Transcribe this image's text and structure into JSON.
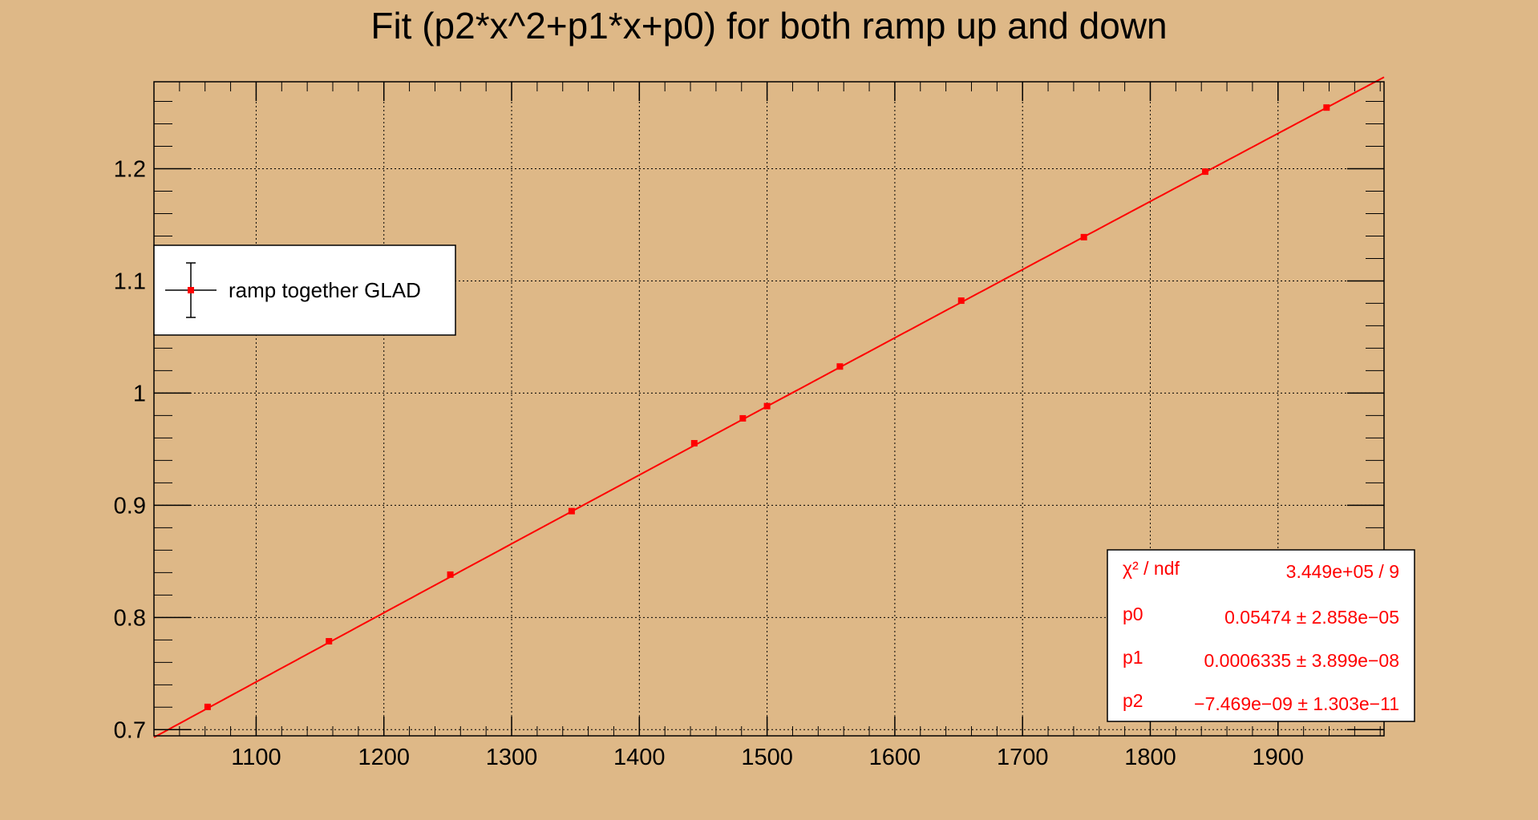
{
  "chart_data": {
    "type": "scatter",
    "title": "Fit (p2*x^2+p1*x+p0) for both ramp up and down",
    "xlabel": "",
    "ylabel": "",
    "xlim": [
      1020,
      1983
    ],
    "ylim": [
      0.6945,
      1.2775
    ],
    "grid": true,
    "x_ticks": [
      {
        "value": 1100,
        "label": "1100"
      },
      {
        "value": 1200,
        "label": "1200"
      },
      {
        "value": 1300,
        "label": "1300"
      },
      {
        "value": 1400,
        "label": "1400"
      },
      {
        "value": 1500,
        "label": "1500"
      },
      {
        "value": 1600,
        "label": "1600"
      },
      {
        "value": 1700,
        "label": "1700"
      },
      {
        "value": 1800,
        "label": "1800"
      },
      {
        "value": 1900,
        "label": "1900"
      }
    ],
    "y_ticks": [
      {
        "value": 0.7,
        "label": "0.7"
      },
      {
        "value": 0.8,
        "label": "0.8"
      },
      {
        "value": 0.9,
        "label": "0.9"
      },
      {
        "value": 1.0,
        "label": "1"
      },
      {
        "value": 1.1,
        "label": "1.1"
      },
      {
        "value": 1.2,
        "label": "1.2"
      }
    ],
    "series": [
      {
        "name": "ramp together GLAD",
        "color": "#ff0000",
        "x": [
          1062,
          1157,
          1252,
          1347,
          1443,
          1481,
          1500,
          1557,
          1652,
          1748,
          1843,
          1938
        ],
        "y": [
          0.7203,
          0.7788,
          0.8382,
          0.8948,
          0.9553,
          0.9775,
          0.9884,
          1.0237,
          1.0824,
          1.139,
          1.1974,
          1.2545
        ]
      }
    ],
    "fit": {
      "color": "#ff0000",
      "p0": 0.05474,
      "p1": 0.0006335,
      "p2": -7.469e-09,
      "x_range": [
        1020,
        1983
      ]
    },
    "legend": {
      "position": "top-left",
      "entries": [
        {
          "label": "ramp together GLAD",
          "color": "#ff0000"
        }
      ]
    },
    "stats": {
      "position": "bottom-right",
      "color": "#ff0000",
      "rows": [
        {
          "name": "χ² / ndf",
          "value": "3.449e+05 / 9"
        },
        {
          "name": "p0",
          "value": "0.05474 ± 2.858e−05"
        },
        {
          "name": "p1",
          "value": "0.0006335 ± 3.899e−08"
        },
        {
          "name": "p2",
          "value": "−7.469e−09 ± 1.303e−11"
        }
      ]
    }
  }
}
